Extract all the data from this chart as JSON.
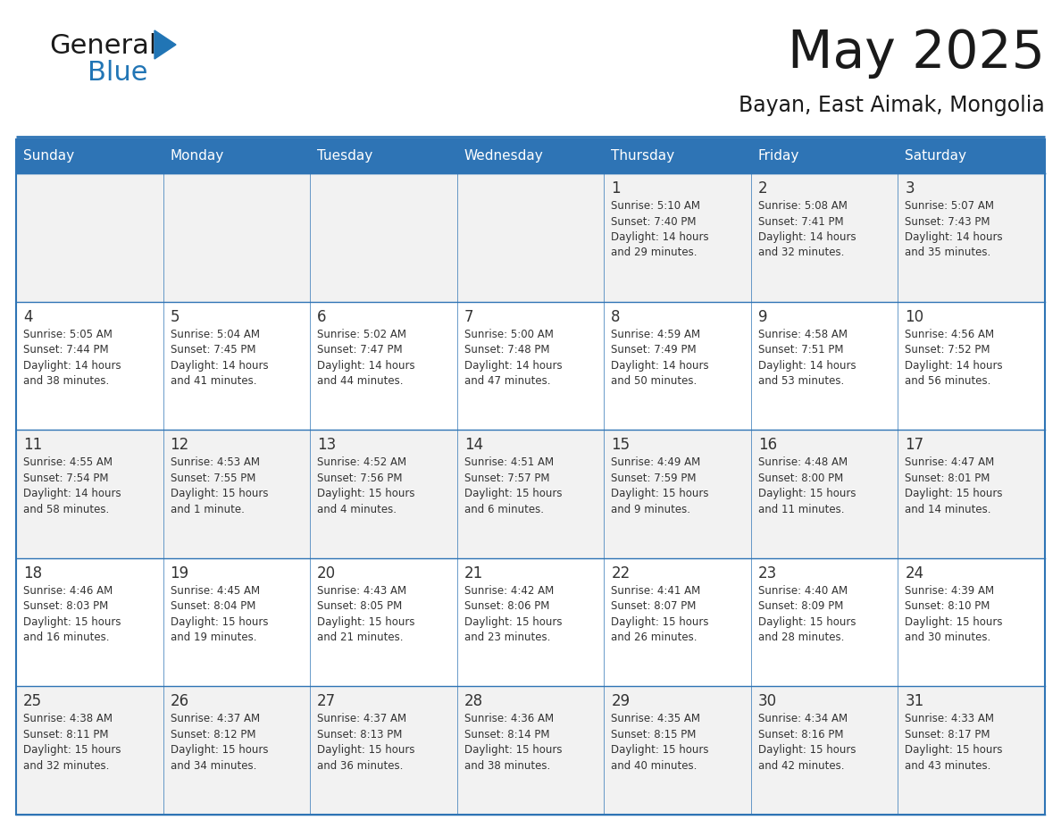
{
  "title": "May 2025",
  "subtitle": "Bayan, East Aimak, Mongolia",
  "header_bg": "#2E74B5",
  "header_text_color": "#FFFFFF",
  "day_names": [
    "Sunday",
    "Monday",
    "Tuesday",
    "Wednesday",
    "Thursday",
    "Friday",
    "Saturday"
  ],
  "row_colors": [
    "#F2F2F2",
    "#FFFFFF"
  ],
  "border_color": "#2E74B5",
  "text_color": "#333333",
  "logo_general_color": "#1a1a1a",
  "logo_blue_color": "#2175B5",
  "title_color": "#1a1a1a",
  "subtitle_color": "#1a1a1a",
  "days": [
    {
      "day": 1,
      "col": 4,
      "row": 0,
      "sunrise": "5:10 AM",
      "sunset": "7:40 PM",
      "daylight": "14 hours and 29 minutes."
    },
    {
      "day": 2,
      "col": 5,
      "row": 0,
      "sunrise": "5:08 AM",
      "sunset": "7:41 PM",
      "daylight": "14 hours and 32 minutes."
    },
    {
      "day": 3,
      "col": 6,
      "row": 0,
      "sunrise": "5:07 AM",
      "sunset": "7:43 PM",
      "daylight": "14 hours and 35 minutes."
    },
    {
      "day": 4,
      "col": 0,
      "row": 1,
      "sunrise": "5:05 AM",
      "sunset": "7:44 PM",
      "daylight": "14 hours and 38 minutes."
    },
    {
      "day": 5,
      "col": 1,
      "row": 1,
      "sunrise": "5:04 AM",
      "sunset": "7:45 PM",
      "daylight": "14 hours and 41 minutes."
    },
    {
      "day": 6,
      "col": 2,
      "row": 1,
      "sunrise": "5:02 AM",
      "sunset": "7:47 PM",
      "daylight": "14 hours and 44 minutes."
    },
    {
      "day": 7,
      "col": 3,
      "row": 1,
      "sunrise": "5:00 AM",
      "sunset": "7:48 PM",
      "daylight": "14 hours and 47 minutes."
    },
    {
      "day": 8,
      "col": 4,
      "row": 1,
      "sunrise": "4:59 AM",
      "sunset": "7:49 PM",
      "daylight": "14 hours and 50 minutes."
    },
    {
      "day": 9,
      "col": 5,
      "row": 1,
      "sunrise": "4:58 AM",
      "sunset": "7:51 PM",
      "daylight": "14 hours and 53 minutes."
    },
    {
      "day": 10,
      "col": 6,
      "row": 1,
      "sunrise": "4:56 AM",
      "sunset": "7:52 PM",
      "daylight": "14 hours and 56 minutes."
    },
    {
      "day": 11,
      "col": 0,
      "row": 2,
      "sunrise": "4:55 AM",
      "sunset": "7:54 PM",
      "daylight": "14 hours and 58 minutes."
    },
    {
      "day": 12,
      "col": 1,
      "row": 2,
      "sunrise": "4:53 AM",
      "sunset": "7:55 PM",
      "daylight": "15 hours and 1 minute."
    },
    {
      "day": 13,
      "col": 2,
      "row": 2,
      "sunrise": "4:52 AM",
      "sunset": "7:56 PM",
      "daylight": "15 hours and 4 minutes."
    },
    {
      "day": 14,
      "col": 3,
      "row": 2,
      "sunrise": "4:51 AM",
      "sunset": "7:57 PM",
      "daylight": "15 hours and 6 minutes."
    },
    {
      "day": 15,
      "col": 4,
      "row": 2,
      "sunrise": "4:49 AM",
      "sunset": "7:59 PM",
      "daylight": "15 hours and 9 minutes."
    },
    {
      "day": 16,
      "col": 5,
      "row": 2,
      "sunrise": "4:48 AM",
      "sunset": "8:00 PM",
      "daylight": "15 hours and 11 minutes."
    },
    {
      "day": 17,
      "col": 6,
      "row": 2,
      "sunrise": "4:47 AM",
      "sunset": "8:01 PM",
      "daylight": "15 hours and 14 minutes."
    },
    {
      "day": 18,
      "col": 0,
      "row": 3,
      "sunrise": "4:46 AM",
      "sunset": "8:03 PM",
      "daylight": "15 hours and 16 minutes."
    },
    {
      "day": 19,
      "col": 1,
      "row": 3,
      "sunrise": "4:45 AM",
      "sunset": "8:04 PM",
      "daylight": "15 hours and 19 minutes."
    },
    {
      "day": 20,
      "col": 2,
      "row": 3,
      "sunrise": "4:43 AM",
      "sunset": "8:05 PM",
      "daylight": "15 hours and 21 minutes."
    },
    {
      "day": 21,
      "col": 3,
      "row": 3,
      "sunrise": "4:42 AM",
      "sunset": "8:06 PM",
      "daylight": "15 hours and 23 minutes."
    },
    {
      "day": 22,
      "col": 4,
      "row": 3,
      "sunrise": "4:41 AM",
      "sunset": "8:07 PM",
      "daylight": "15 hours and 26 minutes."
    },
    {
      "day": 23,
      "col": 5,
      "row": 3,
      "sunrise": "4:40 AM",
      "sunset": "8:09 PM",
      "daylight": "15 hours and 28 minutes."
    },
    {
      "day": 24,
      "col": 6,
      "row": 3,
      "sunrise": "4:39 AM",
      "sunset": "8:10 PM",
      "daylight": "15 hours and 30 minutes."
    },
    {
      "day": 25,
      "col": 0,
      "row": 4,
      "sunrise": "4:38 AM",
      "sunset": "8:11 PM",
      "daylight": "15 hours and 32 minutes."
    },
    {
      "day": 26,
      "col": 1,
      "row": 4,
      "sunrise": "4:37 AM",
      "sunset": "8:12 PM",
      "daylight": "15 hours and 34 minutes."
    },
    {
      "day": 27,
      "col": 2,
      "row": 4,
      "sunrise": "4:37 AM",
      "sunset": "8:13 PM",
      "daylight": "15 hours and 36 minutes."
    },
    {
      "day": 28,
      "col": 3,
      "row": 4,
      "sunrise": "4:36 AM",
      "sunset": "8:14 PM",
      "daylight": "15 hours and 38 minutes."
    },
    {
      "day": 29,
      "col": 4,
      "row": 4,
      "sunrise": "4:35 AM",
      "sunset": "8:15 PM",
      "daylight": "15 hours and 40 minutes."
    },
    {
      "day": 30,
      "col": 5,
      "row": 4,
      "sunrise": "4:34 AM",
      "sunset": "8:16 PM",
      "daylight": "15 hours and 42 minutes."
    },
    {
      "day": 31,
      "col": 6,
      "row": 4,
      "sunrise": "4:33 AM",
      "sunset": "8:17 PM",
      "daylight": "15 hours and 43 minutes."
    }
  ]
}
